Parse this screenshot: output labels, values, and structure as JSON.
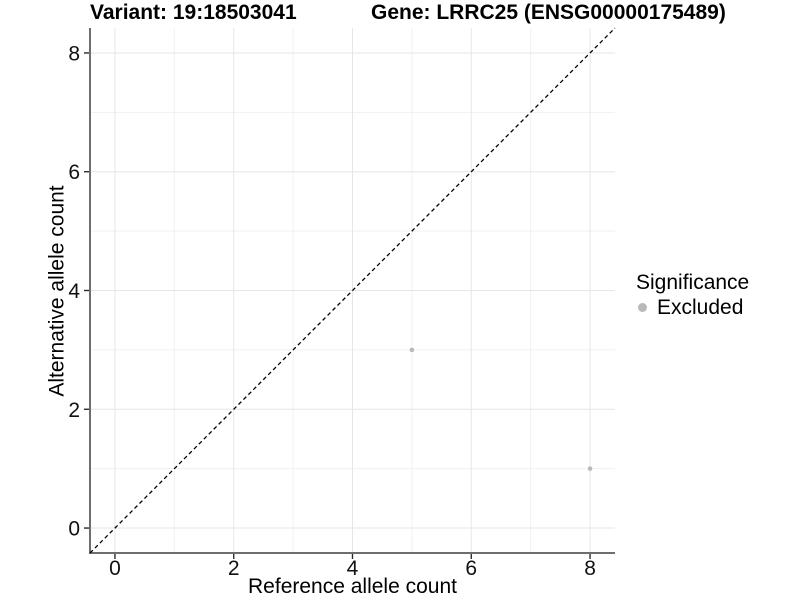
{
  "titles": {
    "left": "Variant: 19:18503041",
    "right": "Gene: LRRC25 (ENSG00000175489)"
  },
  "chart_data": {
    "type": "scatter",
    "xlabel": "Reference allele count",
    "ylabel": "Alternative allele count",
    "xlim": [
      -0.42,
      8.42
    ],
    "ylim": [
      -0.42,
      8.42
    ],
    "x_ticks": [
      0,
      2,
      4,
      6,
      8
    ],
    "y_ticks": [
      0,
      2,
      4,
      6,
      8
    ],
    "x_minor": [
      1,
      3,
      5,
      7
    ],
    "y_minor": [
      1,
      3,
      5,
      7
    ],
    "grid": "major+minor",
    "legend": {
      "title": "Significance",
      "position": "right",
      "items": [
        {
          "label": "Excluded",
          "color": "#b9b9b9"
        }
      ]
    },
    "series": [
      {
        "name": "Excluded",
        "color": "#b9b9b9",
        "points": [
          {
            "x": 5,
            "y": 3
          },
          {
            "x": 8,
            "y": 1
          }
        ]
      }
    ],
    "reference_line": {
      "slope": 1,
      "intercept": 0,
      "style": "dashed",
      "color": "#000000"
    }
  },
  "colors": {
    "background": "#ffffff",
    "grid_major": "#e6e6e6",
    "grid_minor": "#f1f1f1",
    "axis_line": "#6e6e6e",
    "tick_mark": "#2b2b2b",
    "point": "#b9b9b9"
  }
}
